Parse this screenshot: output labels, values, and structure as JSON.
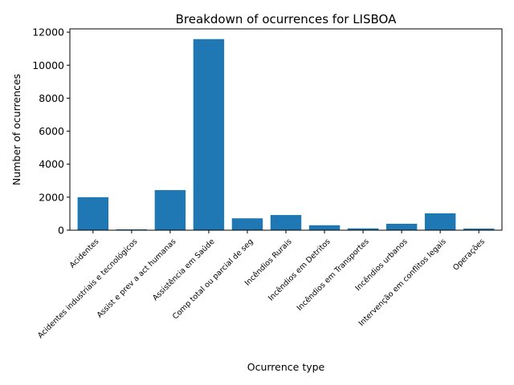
{
  "chart_data": {
    "type": "bar",
    "title": "Breakdown of ocurrences for LISBOA",
    "xlabel": "Ocurrence type",
    "ylabel": "Number of ocurrences",
    "ylim": [
      0,
      12200
    ],
    "yticks": [
      0,
      2000,
      4000,
      6000,
      8000,
      10000,
      12000
    ],
    "grid": false,
    "bar_color": "#1f77b4",
    "categories": [
      "Acidentes",
      "Acidentes industriais e tecnológicos",
      "Assist e prev a act humanas",
      "Assistência em Saúde",
      "Comp total ou parcial de seg",
      "Incêndios Rurais",
      "Incêndios em Detritos",
      "Incêndios em Transportes",
      "Incêndios urbanos",
      "Intervenção em conflitos legais",
      "Operações"
    ],
    "values": [
      2000,
      50,
      2430,
      11580,
      720,
      920,
      300,
      110,
      390,
      1020,
      100
    ]
  }
}
